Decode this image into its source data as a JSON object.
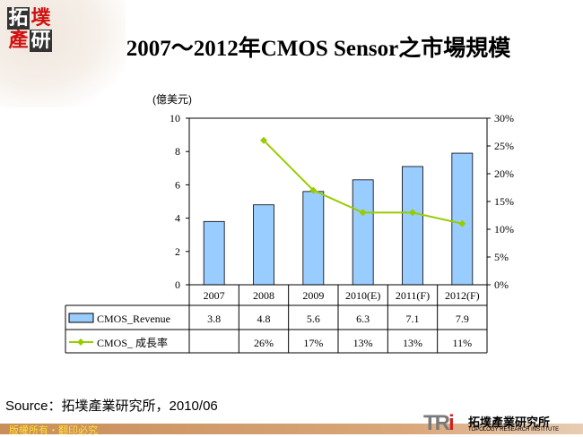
{
  "logo": {
    "chars": [
      "拓",
      "墣",
      "產",
      "研"
    ]
  },
  "title": "2007～2012年CMOS Sensor之市場規模",
  "source": "Source：拓墣產業研究所，2010/06",
  "footer": {
    "copyright": "版權所有・翻印必究",
    "brand": "TRi",
    "brand_cn": "拓墣產業研究所",
    "brand_en": "TOPOLOGY RESEARCH INSTITUTE"
  },
  "chart_data": {
    "type": "bar+line",
    "title": "2007～2012年CMOS Sensor之市場規模",
    "ylabel": "(億美元)",
    "categories": [
      "2007",
      "2008",
      "2009",
      "2010(E)",
      "2011(F)",
      "2012(F)"
    ],
    "ylim": [
      0,
      10
    ],
    "yticks": [
      "0",
      "2",
      "4",
      "6",
      "8",
      "10"
    ],
    "y2lim": [
      0,
      30
    ],
    "y2ticks": [
      "0%",
      "5%",
      "10%",
      "15%",
      "20%",
      "25%",
      "30%"
    ],
    "series": [
      {
        "name": "CMOS_Revenue",
        "type": "bar",
        "color": "#99ccff",
        "values": [
          3.8,
          4.8,
          5.6,
          6.3,
          7.1,
          7.9
        ],
        "labels": [
          "3.8",
          "4.8",
          "5.6",
          "6.3",
          "7.1",
          "7.9"
        ]
      },
      {
        "name": "CMOS_ 成長率",
        "type": "line",
        "axis": "right",
        "color": "#99cc00",
        "values": [
          null,
          26,
          17,
          13,
          13,
          11
        ],
        "labels": [
          "",
          "26%",
          "17%",
          "13%",
          "13%",
          "11%"
        ]
      }
    ],
    "grid": false,
    "legend": "data-table"
  }
}
